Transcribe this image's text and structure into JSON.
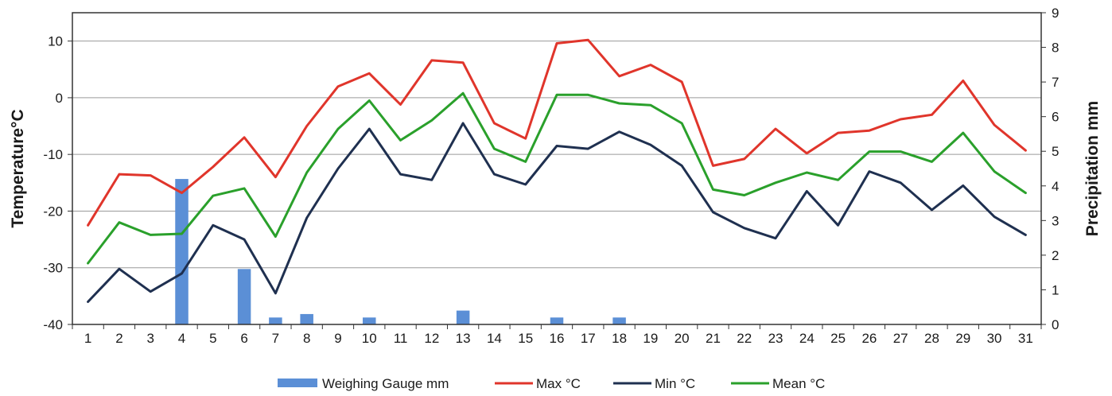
{
  "chart_data": {
    "type": "bar+line",
    "x": [
      "1",
      "2",
      "3",
      "4",
      "5",
      "6",
      "7",
      "8",
      "9",
      "10",
      "11",
      "12",
      "13",
      "14",
      "15",
      "16",
      "17",
      "18",
      "19",
      "20",
      "21",
      "22",
      "23",
      "24",
      "25",
      "26",
      "27",
      "28",
      "29",
      "30",
      "31"
    ],
    "y_left": {
      "label": "Temperature°C",
      "lim": [
        -40,
        15
      ],
      "ticks": [
        -40,
        -30,
        -20,
        -10,
        0,
        10
      ]
    },
    "y_right": {
      "label": "Precipitation mm",
      "lim": [
        0,
        9
      ],
      "ticks": [
        0,
        1,
        2,
        3,
        4,
        5,
        6,
        7,
        8,
        9
      ]
    },
    "grid": true,
    "legend_position": "bottom",
    "series": [
      {
        "name": "Weighing Gauge mm",
        "type": "bar",
        "axis": "right",
        "color": "#5b8fd6",
        "values": [
          0,
          0,
          0,
          4.2,
          0,
          1.6,
          0.2,
          0.3,
          0,
          0.2,
          0,
          0,
          0.4,
          0,
          0,
          0.2,
          0,
          0.2,
          0,
          0,
          0,
          0,
          0,
          0,
          0,
          0,
          0,
          0,
          0,
          0,
          0
        ]
      },
      {
        "name": "Max °C",
        "type": "line",
        "axis": "left",
        "color": "#e0352b",
        "values": [
          -22.5,
          -13.5,
          -13.7,
          -16.8,
          -12.2,
          -7,
          -14,
          -5,
          2,
          4.3,
          -1.2,
          6.6,
          6.2,
          -4.5,
          -7.2,
          9.6,
          10.2,
          3.8,
          5.8,
          2.8,
          -12,
          -10.8,
          -5.5,
          -9.8,
          -6.2,
          -5.8,
          -3.8,
          -3,
          3,
          -4.8,
          -9.3
        ]
      },
      {
        "name": "Min °C",
        "type": "line",
        "axis": "left",
        "color": "#1f3050",
        "values": [
          -36,
          -30.2,
          -34.2,
          -31,
          -22.5,
          -25,
          -34.5,
          -21.2,
          -12.5,
          -5.5,
          -13.5,
          -14.5,
          -4.5,
          -13.5,
          -15.3,
          -8.5,
          -9,
          -6,
          -8.3,
          -12,
          -20.2,
          -23,
          -24.8,
          -16.5,
          -22.5,
          -13,
          -15,
          -19.8,
          -15.5,
          -21,
          -24.2
        ]
      },
      {
        "name": "Mean °C",
        "type": "line",
        "axis": "left",
        "color": "#2aa02b",
        "values": [
          -29.2,
          -22,
          -24.2,
          -24,
          -17.3,
          -16,
          -24.5,
          -13.2,
          -5.5,
          -0.5,
          -7.5,
          -4,
          0.8,
          -9,
          -11.3,
          0.5,
          0.5,
          -1,
          -1.3,
          -4.5,
          -16.2,
          -17.2,
          -15,
          -13.2,
          -14.5,
          -9.5,
          -9.5,
          -11.3,
          -6.2,
          -13,
          -16.8
        ]
      }
    ]
  }
}
